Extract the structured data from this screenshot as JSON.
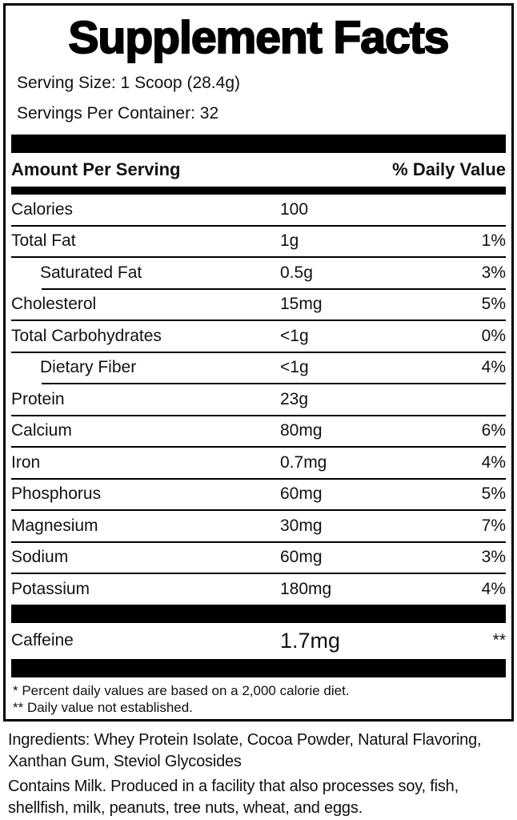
{
  "title": "Supplement Facts",
  "serving_info": {
    "serving_size": "Serving Size: 1 Scoop (28.4g)",
    "servings_per_container": "Servings Per Container: 32"
  },
  "table": {
    "header": {
      "left": "Amount Per Serving",
      "right": "% Daily Value"
    },
    "rows": [
      {
        "name": "Calories",
        "amount": "100",
        "dv": "",
        "indent": false
      },
      {
        "name": "Total Fat",
        "amount": "1g",
        "dv": "1%",
        "indent": false
      },
      {
        "name": "Saturated Fat",
        "amount": "0.5g",
        "dv": "3%",
        "indent": true
      },
      {
        "name": "Cholesterol",
        "amount": "15mg",
        "dv": "5%",
        "indent": false
      },
      {
        "name": "Total Carbohydrates",
        "amount": "<1g",
        "dv": "0%",
        "indent": false
      },
      {
        "name": "Dietary Fiber",
        "amount": "<1g",
        "dv": "4%",
        "indent": true
      },
      {
        "name": "Protein",
        "amount": "23g",
        "dv": "",
        "indent": false
      },
      {
        "name": "Calcium",
        "amount": "80mg",
        "dv": "6%",
        "indent": false
      },
      {
        "name": "Iron",
        "amount": "0.7mg",
        "dv": "4%",
        "indent": false
      },
      {
        "name": "Phosphorus",
        "amount": "60mg",
        "dv": "5%",
        "indent": false
      },
      {
        "name": "Magnesium",
        "amount": "30mg",
        "dv": "7%",
        "indent": false
      },
      {
        "name": "Sodium",
        "amount": "60mg",
        "dv": "3%",
        "indent": false
      },
      {
        "name": "Potassium",
        "amount": "180mg",
        "dv": "4%",
        "indent": false
      }
    ],
    "special_row": {
      "name": "Caffeine",
      "amount": "1.7mg",
      "dv": "**"
    }
  },
  "footnotes": {
    "line1": "* Percent daily values are based on a 2,000 calorie diet.",
    "line2": "** Daily value not established."
  },
  "ingredients": "Ingredients: Whey Protein Isolate, Cocoa Powder, Natural Flavoring, Xanthan Gum, Steviol Glycosides",
  "allergen": "Contains Milk. Produced in a facility that also processes soy, fish, shellfish, milk, peanuts, tree nuts, wheat, and eggs.",
  "colors": {
    "ink": "#000000",
    "background": "#ffffff"
  }
}
